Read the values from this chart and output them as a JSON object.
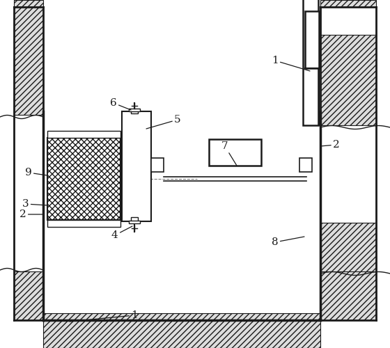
{
  "bg_color": "#ffffff",
  "lc": "#1a1a1a",
  "fig_w": 5.6,
  "fig_h": 5.0,
  "dpi": 100
}
